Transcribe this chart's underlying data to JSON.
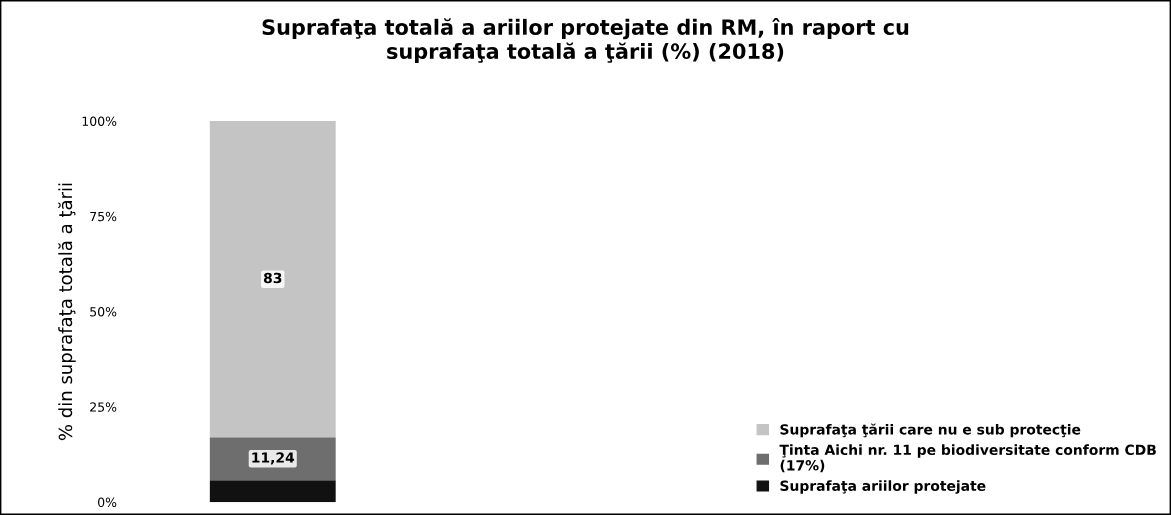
{
  "chart_data": {
    "type": "bar",
    "stacked": true,
    "title": "Suprafaţa totală a ariilor protejate din RM, în raport cu\nsuprafaţa totală a ţării (%) (2018)",
    "ylabel": "% din suprafaţa totală a ţării",
    "categories": [
      null
    ],
    "series": [
      {
        "name": "Suprafaţa ariilor protejate",
        "color": "#111111",
        "values": [
          5.76
        ],
        "value_labels": [
          null
        ]
      },
      {
        "name": "Ţinta Aichi nr. 11 pe biodiversitate conform CDB\n(17%)",
        "color": "#6e6e6e",
        "values": [
          11.24
        ],
        "value_labels": [
          "11,24"
        ]
      },
      {
        "name": "Suprafaţa ţării care nu e sub protecţie",
        "color": "#c4c4c4",
        "values": [
          83
        ],
        "value_labels": [
          "83"
        ]
      }
    ],
    "ylim": [
      0,
      100
    ],
    "yticks": [
      {
        "value": 0,
        "label": "0%"
      },
      {
        "value": 25,
        "label": "25%"
      },
      {
        "value": 50,
        "label": "50%"
      },
      {
        "value": 75,
        "label": "75%"
      },
      {
        "value": 100,
        "label": "100%"
      }
    ],
    "grid": false,
    "legend": "bottom right"
  }
}
